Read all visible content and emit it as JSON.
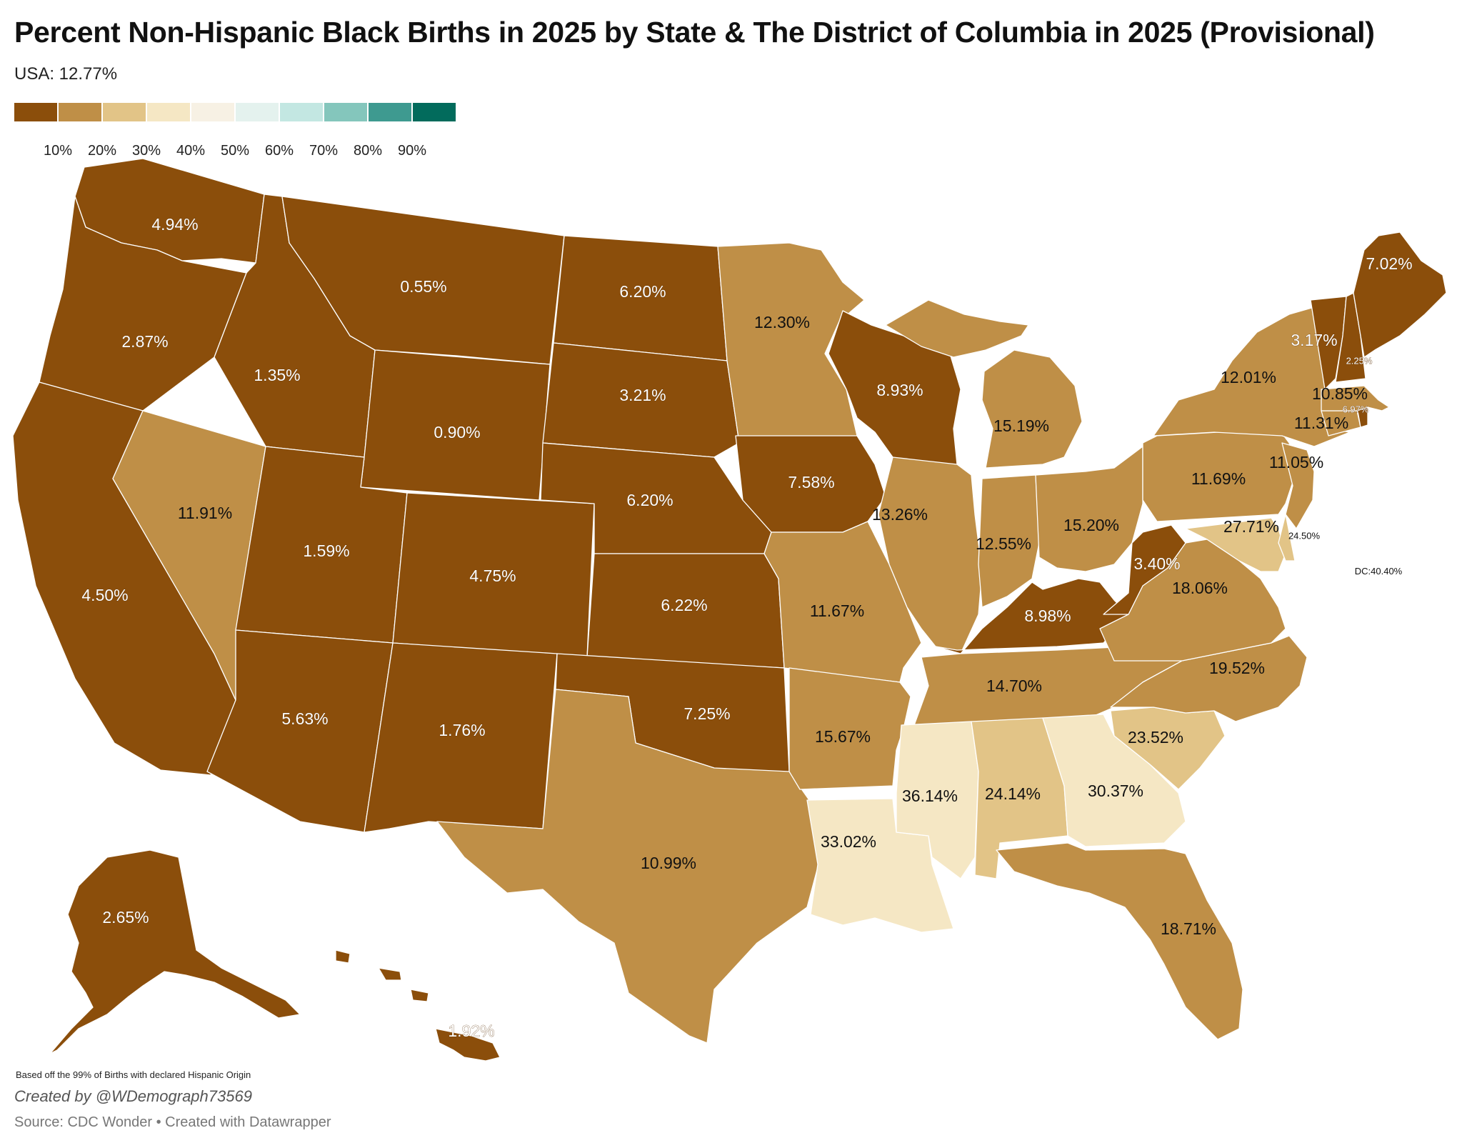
{
  "title": "Percent Non-Hispanic Black Births in 2025 by State & The District of Columbia in 2025 (Provisional)",
  "subtitle": "USA: 12.77%",
  "legend": {
    "colors": [
      "#8b4e0b",
      "#bf8f47",
      "#e2c487",
      "#f5e7c4",
      "#f7f1e4",
      "#e4f2ee",
      "#c3e7e2",
      "#84c6bc",
      "#3e9a90",
      "#026b5c"
    ],
    "ticks": [
      "10%",
      "20%",
      "30%",
      "40%",
      "50%",
      "60%",
      "70%",
      "80%",
      "90%"
    ]
  },
  "note_births": "Based off the 99% of Births with declared Hispanic Origin",
  "credit": "Created by @WDemograph73569",
  "source": "Source: CDC Wonder • Created with Datawrapper",
  "dc_label": "DC:40.40%",
  "states": [
    {
      "state": "WA",
      "label": "4.94%",
      "value": 4.94
    },
    {
      "state": "OR",
      "label": "2.87%",
      "value": 2.87
    },
    {
      "state": "CA",
      "label": "4.50%",
      "value": 4.5
    },
    {
      "state": "NV",
      "label": "11.91%",
      "value": 11.91
    },
    {
      "state": "ID",
      "label": "1.35%",
      "value": 1.35
    },
    {
      "state": "MT",
      "label": "0.55%",
      "value": 0.55
    },
    {
      "state": "WY",
      "label": "0.90%",
      "value": 0.9
    },
    {
      "state": "UT",
      "label": "1.59%",
      "value": 1.59
    },
    {
      "state": "AZ",
      "label": "5.63%",
      "value": 5.63
    },
    {
      "state": "CO",
      "label": "4.75%",
      "value": 4.75
    },
    {
      "state": "NM",
      "label": "1.76%",
      "value": 1.76
    },
    {
      "state": "ND",
      "label": "6.20%",
      "value": 6.2
    },
    {
      "state": "SD",
      "label": "3.21%",
      "value": 3.21
    },
    {
      "state": "NE",
      "label": "6.20%",
      "value": 6.2
    },
    {
      "state": "KS",
      "label": "6.22%",
      "value": 6.22
    },
    {
      "state": "OK",
      "label": "7.25%",
      "value": 7.25
    },
    {
      "state": "TX",
      "label": "10.99%",
      "value": 10.99
    },
    {
      "state": "MN",
      "label": "12.30%",
      "value": 12.3
    },
    {
      "state": "IA",
      "label": "7.58%",
      "value": 7.58
    },
    {
      "state": "MO",
      "label": "11.67%",
      "value": 11.67
    },
    {
      "state": "AR",
      "label": "15.67%",
      "value": 15.67
    },
    {
      "state": "LA",
      "label": "33.02%",
      "value": 33.02
    },
    {
      "state": "WI",
      "label": "8.93%",
      "value": 8.93
    },
    {
      "state": "IL",
      "label": "13.26%",
      "value": 13.26
    },
    {
      "state": "MI",
      "label": "15.19%",
      "value": 15.19
    },
    {
      "state": "IN",
      "label": "12.55%",
      "value": 12.55
    },
    {
      "state": "OH",
      "label": "15.20%",
      "value": 15.2
    },
    {
      "state": "KY",
      "label": "8.98%",
      "value": 8.98
    },
    {
      "state": "TN",
      "label": "14.70%",
      "value": 14.7
    },
    {
      "state": "MS",
      "label": "36.14%",
      "value": 36.14
    },
    {
      "state": "AL",
      "label": "24.14%",
      "value": 24.14
    },
    {
      "state": "GA",
      "label": "30.37%",
      "value": 30.37
    },
    {
      "state": "FL",
      "label": "18.71%",
      "value": 18.71
    },
    {
      "state": "SC",
      "label": "23.52%",
      "value": 23.52
    },
    {
      "state": "NC",
      "label": "19.52%",
      "value": 19.52
    },
    {
      "state": "VA",
      "label": "18.06%",
      "value": 18.06
    },
    {
      "state": "WV",
      "label": "3.40%",
      "value": 3.4
    },
    {
      "state": "MD",
      "label": "27.71%",
      "value": 27.71
    },
    {
      "state": "DE",
      "label": "24.50%",
      "value": 24.5
    },
    {
      "state": "PA",
      "label": "11.69%",
      "value": 11.69
    },
    {
      "state": "NJ",
      "label": "11.05%",
      "value": 11.05
    },
    {
      "state": "NY",
      "label": "12.01%",
      "value": 12.01
    },
    {
      "state": "CT",
      "label": "11.31%",
      "value": 11.31
    },
    {
      "state": "RI",
      "label": "6.97%",
      "value": 6.97
    },
    {
      "state": "MA",
      "label": "10.85%",
      "value": 10.85
    },
    {
      "state": "VT",
      "label": "3.17%",
      "value": 3.17
    },
    {
      "state": "NH",
      "label": "2.25%",
      "value": 2.25
    },
    {
      "state": "ME",
      "label": "7.02%",
      "value": 7.02
    },
    {
      "state": "AK",
      "label": "2.65%",
      "value": 2.65
    },
    {
      "state": "HI",
      "label": "1.92%",
      "value": 1.92
    }
  ]
}
